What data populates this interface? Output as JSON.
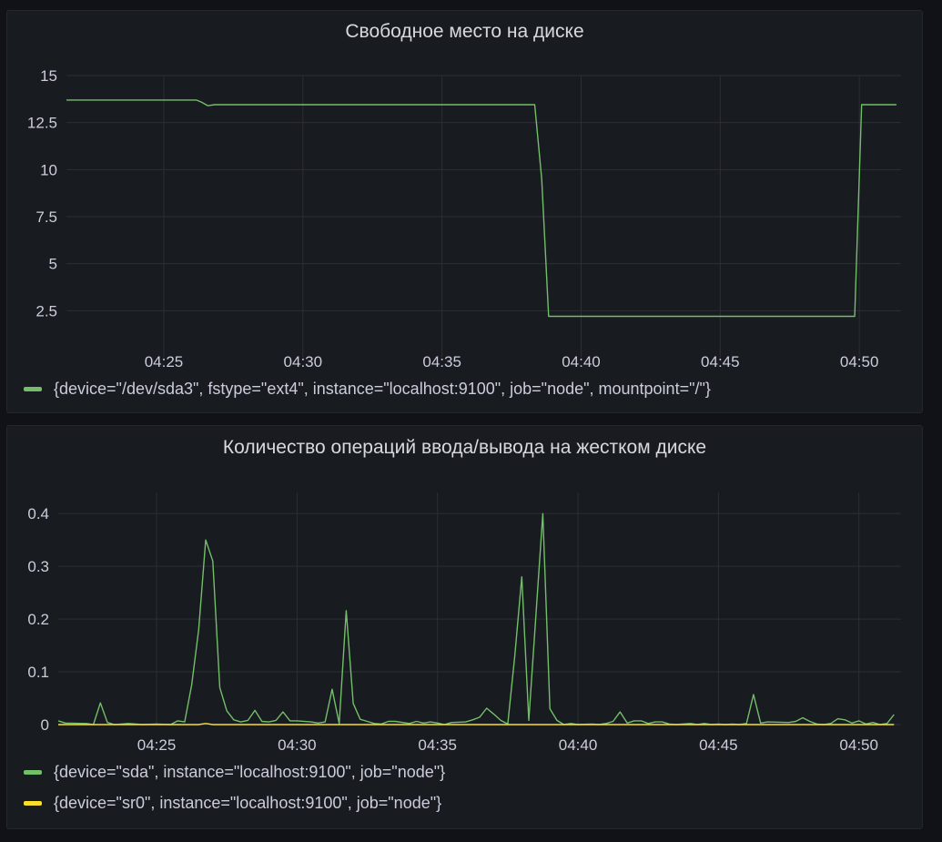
{
  "chart_data": [
    {
      "type": "line",
      "title": "Свободное место на диске",
      "xlabel": "",
      "ylabel": "",
      "xlim": [
        "04:21:30",
        "04:51:30"
      ],
      "ylim": [
        0,
        15
      ],
      "y_ticks": [
        "15",
        "12.5",
        "10",
        "7.5",
        "5",
        "2.5"
      ],
      "x_ticks": [
        "04:25",
        "04:30",
        "04:35",
        "04:40",
        "04:45",
        "04:50"
      ],
      "grid": true,
      "legend_placement": "bottom",
      "series": [
        {
          "name": "{device=\"/dev/sda3\", fstype=\"ext4\", instance=\"localhost:9100\", job=\"node\", mountpoint=\"/\"}",
          "color": "#73bf69",
          "points": [
            [
              "04:21:30",
              13.7
            ],
            [
              "04:26:10",
              13.7
            ],
            [
              "04:26:20",
              13.6
            ],
            [
              "04:26:35",
              13.4
            ],
            [
              "04:26:50",
              13.45
            ],
            [
              "04:38:20",
              13.45
            ],
            [
              "04:38:35",
              9.5
            ],
            [
              "04:38:50",
              2.2
            ],
            [
              "04:49:50",
              2.2
            ],
            [
              "04:50:05",
              13.45
            ],
            [
              "04:51:20",
              13.45
            ]
          ]
        }
      ]
    },
    {
      "type": "line",
      "title": "Количество операций ввода/вывода на жестком диске",
      "xlabel": "",
      "ylabel": "",
      "xlim": [
        "04:21:30",
        "04:51:30"
      ],
      "ylim": [
        0,
        0.44
      ],
      "y_ticks": [
        "0.4",
        "0.3",
        "0.2",
        "0.1",
        "0"
      ],
      "x_ticks": [
        "04:25",
        "04:30",
        "04:35",
        "04:40",
        "04:45",
        "04:50"
      ],
      "grid": true,
      "legend_placement": "bottom",
      "series": [
        {
          "name": "{device=\"sda\", instance=\"localhost:9100\", job=\"node\"}",
          "color": "#73bf69",
          "points": [
            [
              "04:21:30",
              0.007
            ],
            [
              "04:21:45",
              0.003
            ],
            [
              "04:22:30",
              0.002
            ],
            [
              "04:22:45",
              0.0
            ],
            [
              "04:23:00",
              0.041
            ],
            [
              "04:23:15",
              0.004
            ],
            [
              "04:23:30",
              0.0
            ],
            [
              "04:24:00",
              0.002
            ],
            [
              "04:24:30",
              0.0
            ],
            [
              "04:25:00",
              0.001
            ],
            [
              "04:25:30",
              0.0
            ],
            [
              "04:25:45",
              0.007
            ],
            [
              "04:26:00",
              0.005
            ],
            [
              "04:26:15",
              0.075
            ],
            [
              "04:26:30",
              0.18
            ],
            [
              "04:26:45",
              0.35
            ],
            [
              "04:27:00",
              0.31
            ],
            [
              "04:27:15",
              0.07
            ],
            [
              "04:27:30",
              0.026
            ],
            [
              "04:27:45",
              0.009
            ],
            [
              "04:28:00",
              0.005
            ],
            [
              "04:28:15",
              0.008
            ],
            [
              "04:28:30",
              0.027
            ],
            [
              "04:28:45",
              0.006
            ],
            [
              "04:29:00",
              0.005
            ],
            [
              "04:29:15",
              0.008
            ],
            [
              "04:29:30",
              0.024
            ],
            [
              "04:29:45",
              0.007
            ],
            [
              "04:30:00",
              0.007
            ],
            [
              "04:30:30",
              0.005
            ],
            [
              "04:30:45",
              0.003
            ],
            [
              "04:31:00",
              0.005
            ],
            [
              "04:31:15",
              0.067
            ],
            [
              "04:31:30",
              0.002
            ],
            [
              "04:31:45",
              0.216
            ],
            [
              "04:32:00",
              0.04
            ],
            [
              "04:32:15",
              0.01
            ],
            [
              "04:32:30",
              0.006
            ],
            [
              "04:32:45",
              0.002
            ],
            [
              "04:33:00",
              0.001
            ],
            [
              "04:33:15",
              0.006
            ],
            [
              "04:33:30",
              0.006
            ],
            [
              "04:34:00",
              0.002
            ],
            [
              "04:34:15",
              0.006
            ],
            [
              "04:34:30",
              0.003
            ],
            [
              "04:34:45",
              0.005
            ],
            [
              "04:35:00",
              0.003
            ],
            [
              "04:35:15",
              0.0
            ],
            [
              "04:35:30",
              0.004
            ],
            [
              "04:36:00",
              0.005
            ],
            [
              "04:36:15",
              0.009
            ],
            [
              "04:36:30",
              0.014
            ],
            [
              "04:36:45",
              0.031
            ],
            [
              "04:37:00",
              0.02
            ],
            [
              "04:37:15",
              0.008
            ],
            [
              "04:37:30",
              0.001
            ],
            [
              "04:37:45",
              0.13
            ],
            [
              "04:38:00",
              0.28
            ],
            [
              "04:38:15",
              0.008
            ],
            [
              "04:38:45",
              0.4
            ],
            [
              "04:39:00",
              0.03
            ],
            [
              "04:39:15",
              0.008
            ],
            [
              "04:39:30",
              0.0
            ],
            [
              "04:39:45",
              0.002
            ],
            [
              "04:40:00",
              0.0
            ],
            [
              "04:40:30",
              0.001
            ],
            [
              "04:40:45",
              0.0
            ],
            [
              "04:41:00",
              0.002
            ],
            [
              "04:41:15",
              0.006
            ],
            [
              "04:41:30",
              0.024
            ],
            [
              "04:41:45",
              0.003
            ],
            [
              "04:42:00",
              0.007
            ],
            [
              "04:42:15",
              0.007
            ],
            [
              "04:42:30",
              0.002
            ],
            [
              "04:42:45",
              0.005
            ],
            [
              "04:43:00",
              0.005
            ],
            [
              "04:43:15",
              0.001
            ],
            [
              "04:43:30",
              0.0
            ],
            [
              "04:44:00",
              0.002
            ],
            [
              "04:44:15",
              0.0
            ],
            [
              "04:44:30",
              0.002
            ],
            [
              "04:44:45",
              0.0
            ],
            [
              "04:45:00",
              0.001
            ],
            [
              "04:45:15",
              0.0
            ],
            [
              "04:45:30",
              0.001
            ],
            [
              "04:45:45",
              0.0
            ],
            [
              "04:46:00",
              0.002
            ],
            [
              "04:46:15",
              0.057
            ],
            [
              "04:46:30",
              0.003
            ],
            [
              "04:46:45",
              0.005
            ],
            [
              "04:47:30",
              0.004
            ],
            [
              "04:47:45",
              0.006
            ],
            [
              "04:48:00",
              0.013
            ],
            [
              "04:48:15",
              0.006
            ],
            [
              "04:48:30",
              0.001
            ],
            [
              "04:48:45",
              0.0
            ],
            [
              "04:49:00",
              0.002
            ],
            [
              "04:49:15",
              0.011
            ],
            [
              "04:49:30",
              0.009
            ],
            [
              "04:49:45",
              0.003
            ],
            [
              "04:50:00",
              0.007
            ],
            [
              "04:50:15",
              0.001
            ],
            [
              "04:50:30",
              0.004
            ],
            [
              "04:50:45",
              0.0
            ],
            [
              "04:51:00",
              0.002
            ],
            [
              "04:51:15",
              0.019
            ]
          ]
        },
        {
          "name": "{device=\"sr0\", instance=\"localhost:9100\", job=\"node\"}",
          "color": "#fade2a",
          "points": [
            [
              "04:21:30",
              0.0
            ],
            [
              "04:26:30",
              0.0
            ],
            [
              "04:26:45",
              0.002
            ],
            [
              "04:27:00",
              0.0
            ],
            [
              "04:51:15",
              0.0
            ]
          ]
        }
      ]
    }
  ]
}
